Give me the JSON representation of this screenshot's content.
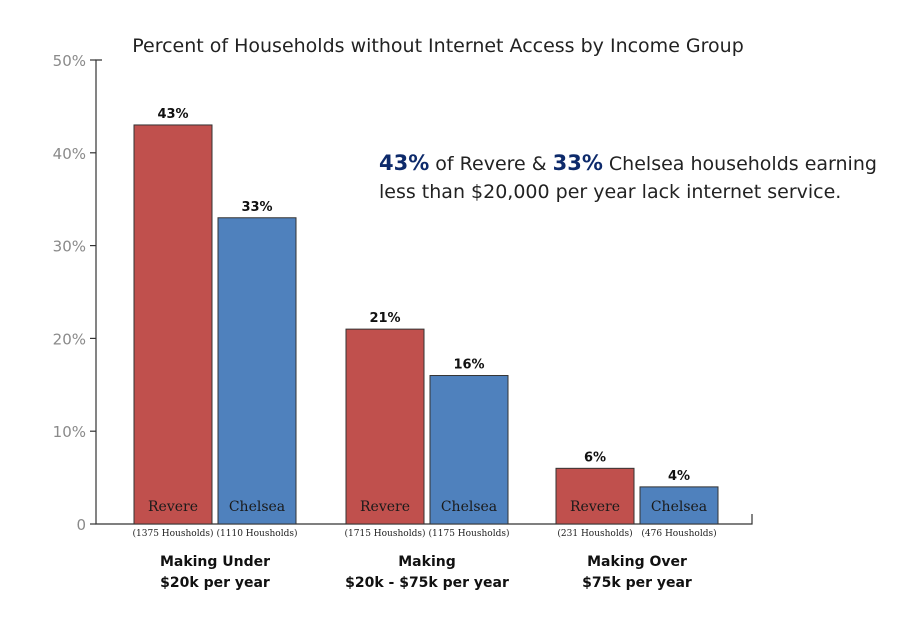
{
  "chart_data": {
    "type": "bar",
    "title": "Percent of Households without Internet Access by Income Group",
    "ylim": [
      0,
      50
    ],
    "yticks": [
      "0",
      "10%",
      "20%",
      "30%",
      "40%",
      "50%"
    ],
    "grid": false,
    "categories": [
      {
        "lines": [
          "Making Under",
          "$20k per year"
        ]
      },
      {
        "lines": [
          "Making",
          "$20k -  $75k per year"
        ]
      },
      {
        "lines": [
          "Making Over",
          "$75k per year"
        ]
      }
    ],
    "series": [
      {
        "name": "Revere",
        "color": "#c0504d",
        "values": [
          43,
          21,
          6
        ],
        "labels": [
          "43%",
          "21%",
          "6%"
        ],
        "households": [
          "(1375 Housholds)",
          "(1715 Housholds)",
          "(231 Housholds)"
        ]
      },
      {
        "name": "Chelsea",
        "color": "#4f81bd",
        "values": [
          33,
          16,
          4
        ],
        "labels": [
          "33%",
          "16%",
          "4%"
        ],
        "households": [
          "(1110 Housholds)",
          "(1175 Housholds)",
          "(476 Housholds)"
        ]
      }
    ],
    "annotation": {
      "line1": [
        {
          "text": "43%",
          "highlight": true
        },
        {
          "text": " of Revere & ",
          "highlight": false
        },
        {
          "text": "33%",
          "highlight": true
        },
        {
          "text": " Chelsea households earning",
          "highlight": false
        }
      ],
      "line2": "less than $20,000 per year lack internet service.",
      "highlight_color": "#0d2a6b"
    }
  }
}
